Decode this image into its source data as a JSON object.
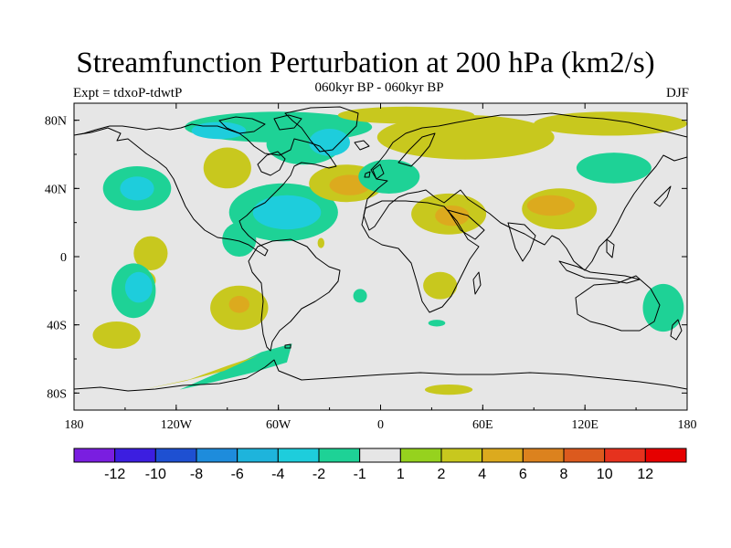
{
  "header": {
    "title": "Streamfunction Perturbation at 200 hPa (km2/s)",
    "subtitle_center": "060kyr BP - 060kyr BP",
    "subtitle_left": "Expt = tdxoP-tdwtP",
    "subtitle_right": "DJF"
  },
  "axes": {
    "x_ticks": [
      {
        "lon": -180,
        "label": "180"
      },
      {
        "lon": -120,
        "label": "120W"
      },
      {
        "lon": -60,
        "label": "60W"
      },
      {
        "lon": 0,
        "label": "0"
      },
      {
        "lon": 60,
        "label": "60E"
      },
      {
        "lon": 120,
        "label": "120E"
      },
      {
        "lon": 180,
        "label": "180"
      }
    ],
    "y_ticks": [
      {
        "lat": 80,
        "label": "80N"
      },
      {
        "lat": 40,
        "label": "40N"
      },
      {
        "lat": 0,
        "label": "0"
      },
      {
        "lat": -40,
        "label": "40S"
      },
      {
        "lat": -80,
        "label": "80S"
      }
    ],
    "lon_range": [
      -180,
      180
    ],
    "lat_range": [
      -90,
      90
    ]
  },
  "colorbar": {
    "colors": [
      "#7a1ee0",
      "#3c1ee0",
      "#1e50d2",
      "#1e8cdc",
      "#1eb4dc",
      "#1ecddc",
      "#1ed296",
      "#e6e6e6",
      "#96d21e",
      "#c8c81e",
      "#dcaa1e",
      "#dc821e",
      "#dc5a1e",
      "#e6321e",
      "#e60000"
    ],
    "labels": [
      "-12",
      "-10",
      "-8",
      "-6",
      "-4",
      "-2",
      "-1",
      "1",
      "2",
      "4",
      "6",
      "8",
      "10",
      "12"
    ]
  },
  "field": {
    "background_color": "#e6e6e6",
    "anomalies": [
      {
        "lon": -60,
        "lat": 76,
        "rlon": 55,
        "rlat": 9,
        "level": "-1"
      },
      {
        "lon": -45,
        "lat": 66,
        "rlon": 22,
        "rlat": 12,
        "level": "-1"
      },
      {
        "lon": -30,
        "lat": 67,
        "rlon": 12,
        "rlat": 8,
        "level": "-2"
      },
      {
        "lon": -95,
        "lat": 74,
        "rlon": 16,
        "rlat": 5,
        "level": "-2"
      },
      {
        "lon": -90,
        "lat": 52,
        "rlon": 14,
        "rlat": 12,
        "level": "2"
      },
      {
        "lon": -143,
        "lat": 40,
        "rlon": 20,
        "rlat": 13,
        "level": "-1"
      },
      {
        "lon": -143,
        "lat": 40,
        "rlon": 10,
        "rlat": 7,
        "level": "-2"
      },
      {
        "lon": -57,
        "lat": 26,
        "rlon": 32,
        "rlat": 17,
        "level": "-1"
      },
      {
        "lon": -55,
        "lat": 26,
        "rlon": 20,
        "rlat": 10,
        "level": "-2"
      },
      {
        "lon": -20,
        "lat": 43,
        "rlon": 22,
        "rlat": 11,
        "level": "2"
      },
      {
        "lon": -18,
        "lat": 42,
        "rlon": 12,
        "rlat": 6,
        "level": "4"
      },
      {
        "lon": 5,
        "lat": 47,
        "rlon": 18,
        "rlat": 10,
        "level": "-1"
      },
      {
        "lon": 50,
        "lat": 70,
        "rlon": 52,
        "rlat": 13,
        "level": "2"
      },
      {
        "lon": 15,
        "lat": 83,
        "rlon": 40,
        "rlat": 5,
        "level": "2"
      },
      {
        "lon": 135,
        "lat": 78,
        "rlon": 45,
        "rlat": 7,
        "level": "2"
      },
      {
        "lon": 40,
        "lat": 25,
        "rlon": 22,
        "rlat": 12,
        "level": "2"
      },
      {
        "lon": 42,
        "lat": 24,
        "rlon": 10,
        "rlat": 6,
        "level": "4"
      },
      {
        "lon": 105,
        "lat": 28,
        "rlon": 22,
        "rlat": 12,
        "level": "2"
      },
      {
        "lon": 100,
        "lat": 30,
        "rlon": 14,
        "rlat": 6,
        "level": "4"
      },
      {
        "lon": 137,
        "lat": 52,
        "rlon": 22,
        "rlat": 9,
        "level": "-1"
      },
      {
        "lon": -135,
        "lat": 2,
        "rlon": 10,
        "rlat": 10,
        "level": "2"
      },
      {
        "lon": -140,
        "lat": -14,
        "rlon": 8,
        "rlat": 6,
        "level": "2"
      },
      {
        "lon": -145,
        "lat": -20,
        "rlon": 13,
        "rlat": 16,
        "level": "-1"
      },
      {
        "lon": -142,
        "lat": -18,
        "rlon": 8,
        "rlat": 9,
        "level": "-2"
      },
      {
        "lon": -83,
        "lat": 10,
        "rlon": 10,
        "rlat": 10,
        "level": "-1"
      },
      {
        "lon": -83,
        "lat": -30,
        "rlon": 17,
        "rlat": 13,
        "level": "2"
      },
      {
        "lon": -83,
        "lat": -28,
        "rlon": 6,
        "rlat": 5,
        "level": "4"
      },
      {
        "lon": 35,
        "lat": -17,
        "rlon": 10,
        "rlat": 8,
        "level": "2"
      },
      {
        "lon": -12,
        "lat": -23,
        "rlon": 4,
        "rlat": 4,
        "level": "-1"
      },
      {
        "lon": 33,
        "lat": -39,
        "rlon": 5,
        "rlat": 2,
        "level": "-1"
      },
      {
        "lon": -155,
        "lat": -46,
        "rlon": 14,
        "rlat": 8,
        "level": "2"
      },
      {
        "lon": 166,
        "lat": -30,
        "rlon": 12,
        "rlat": 14,
        "level": "-1"
      },
      {
        "lon": -35,
        "lat": 8,
        "rlon": 2,
        "rlat": 3,
        "level": "2"
      },
      {
        "lon": 40,
        "lat": -78,
        "rlon": 14,
        "rlat": 3,
        "level": "2"
      }
    ],
    "bands": [
      {
        "level": "-1",
        "points": [
          [
            -118,
            -78
          ],
          [
            -95,
            -68
          ],
          [
            -70,
            -56
          ],
          [
            -52,
            -51
          ],
          [
            -55,
            -62
          ],
          [
            -75,
            -68
          ],
          [
            -100,
            -74
          ],
          [
            -118,
            -78
          ]
        ]
      },
      {
        "level": "2",
        "points": [
          [
            -140,
            -78
          ],
          [
            -115,
            -73
          ],
          [
            -92,
            -67
          ],
          [
            -72,
            -58
          ],
          [
            -90,
            -64
          ],
          [
            -112,
            -72
          ],
          [
            -140,
            -78
          ]
        ]
      }
    ]
  }
}
